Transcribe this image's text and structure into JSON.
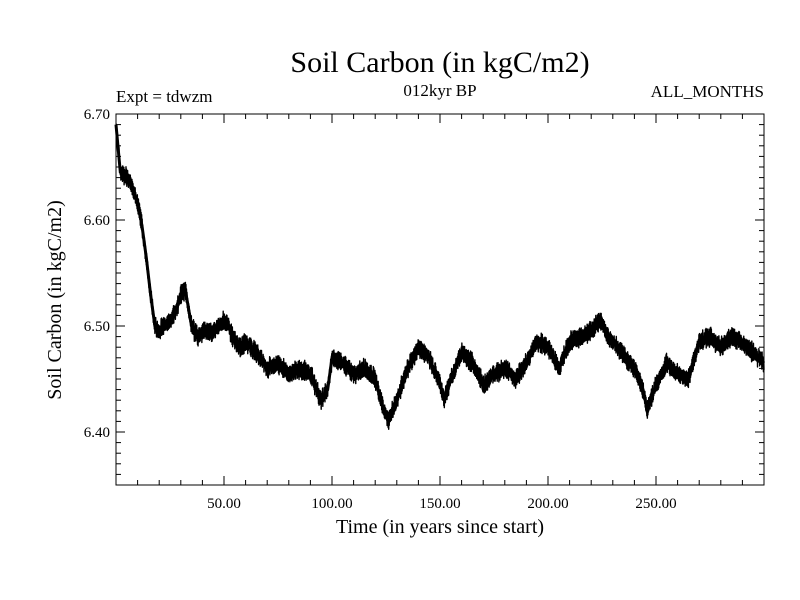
{
  "chart_data": {
    "type": "line",
    "title": "Soil Carbon (in kgC/m2)",
    "subtitle_left": "Expt = tdwzm",
    "subtitle_center": "012kyr BP",
    "subtitle_right": "ALL_MONTHS",
    "xlabel": "Time (in years since start)",
    "ylabel": "Soil Carbon (in kgC/m2)",
    "xlim": [
      0,
      300
    ],
    "ylim": [
      6.35,
      6.7
    ],
    "x_ticks": [
      50,
      100,
      150,
      200,
      250
    ],
    "x_tick_labels": [
      "50.00",
      "100.00",
      "150.00",
      "200.00",
      "250.00"
    ],
    "y_ticks": [
      6.4,
      6.5,
      6.6,
      6.7
    ],
    "y_tick_labels": [
      "6.40",
      "6.50",
      "6.60",
      "6.70"
    ],
    "series": [
      {
        "name": "Soil Carbon",
        "color": "#000000",
        "band_width": 0.012,
        "x": [
          0,
          2,
          5,
          8,
          10,
          12,
          14,
          16,
          18,
          20,
          22,
          25,
          28,
          30,
          32,
          35,
          38,
          40,
          45,
          50,
          52,
          55,
          58,
          60,
          65,
          70,
          75,
          80,
          85,
          90,
          95,
          98,
          100,
          105,
          110,
          115,
          120,
          124,
          126,
          130,
          135,
          140,
          145,
          150,
          152,
          155,
          160,
          165,
          170,
          175,
          180,
          185,
          190,
          195,
          200,
          205,
          210,
          215,
          220,
          224,
          228,
          232,
          236,
          240,
          244,
          246,
          250,
          255,
          260,
          265,
          270,
          275,
          280,
          285,
          290,
          295,
          300
        ],
        "values": [
          6.69,
          6.645,
          6.64,
          6.63,
          6.615,
          6.595,
          6.565,
          6.53,
          6.5,
          6.495,
          6.5,
          6.505,
          6.515,
          6.53,
          6.535,
          6.5,
          6.49,
          6.495,
          6.495,
          6.505,
          6.5,
          6.485,
          6.48,
          6.485,
          6.475,
          6.46,
          6.465,
          6.455,
          6.46,
          6.455,
          6.43,
          6.44,
          6.47,
          6.465,
          6.455,
          6.46,
          6.45,
          6.42,
          6.41,
          6.43,
          6.46,
          6.48,
          6.47,
          6.445,
          6.43,
          6.45,
          6.475,
          6.465,
          6.445,
          6.455,
          6.46,
          6.45,
          6.465,
          6.485,
          6.48,
          6.46,
          6.485,
          6.49,
          6.495,
          6.505,
          6.49,
          6.48,
          6.47,
          6.46,
          6.44,
          6.42,
          6.445,
          6.465,
          6.455,
          6.45,
          6.485,
          6.49,
          6.48,
          6.49,
          6.485,
          6.475,
          6.465
        ]
      }
    ]
  }
}
